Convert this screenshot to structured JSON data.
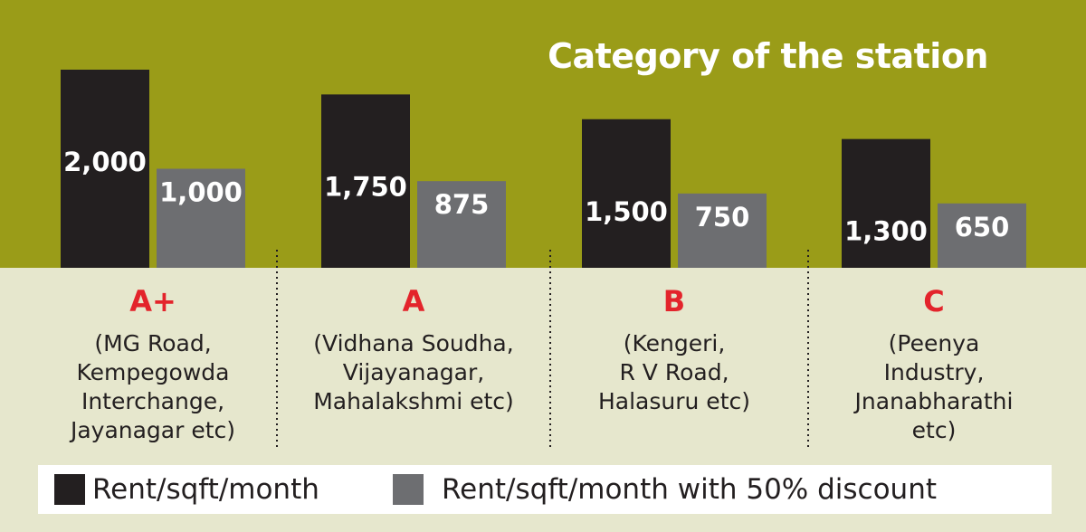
{
  "chart_data": {
    "type": "bar",
    "title": "Category of the station",
    "categories": [
      "A+",
      "A",
      "B",
      "C"
    ],
    "category_details": [
      [
        "(MG Road,",
        "Kempegowda",
        "Interchange,",
        "Jayanagar etc)"
      ],
      [
        "(Vidhana Soudha,",
        "Vijayanagar,",
        "Mahalakshmi etc)"
      ],
      [
        "(Kengeri,",
        "R V Road,",
        "Halasuru etc)"
      ],
      [
        "(Peenya",
        "Industry,",
        "Jnanabharathi",
        "etc)"
      ]
    ],
    "series": [
      {
        "name": "Rent/sqft/month",
        "values": [
          2000,
          1750,
          1500,
          1300
        ],
        "labels": [
          "2,000",
          "1,750",
          "1,500",
          "1,300"
        ],
        "color": "#231f20"
      },
      {
        "name": "Rent/sqft/month with 50% discount",
        "values": [
          1000,
          875,
          750,
          650
        ],
        "labels": [
          "1,000",
          "875",
          "750",
          "650"
        ],
        "color": "#6d6e71"
      }
    ],
    "legend": "bottom",
    "colors": {
      "top_band": "#9a9c18",
      "bottom_band": "#e6e7cd",
      "category_label": "#e3242b",
      "bar_label": "#ffffff"
    }
  }
}
